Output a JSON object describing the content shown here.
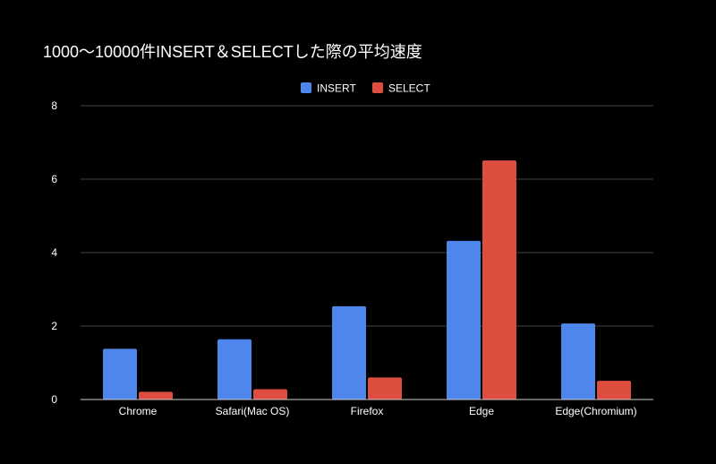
{
  "chart_data": {
    "type": "bar",
    "title": "1000〜10000件INSERT＆SELECTした際の平均速度",
    "xlabel": "",
    "ylabel": "",
    "categories": [
      "Chrome",
      "Safari(Mac OS)",
      "Firefox",
      "Edge",
      "Edge(Chromium)"
    ],
    "series": [
      {
        "name": "INSERT",
        "color": "#4f86ec",
        "values": [
          1.38,
          1.64,
          2.54,
          4.32,
          2.07
        ]
      },
      {
        "name": "SELECT",
        "color": "#dd4e40",
        "values": [
          0.21,
          0.28,
          0.6,
          6.51,
          0.51
        ]
      }
    ],
    "ylim": [
      0,
      8
    ],
    "yticks": [
      0,
      2,
      4,
      6,
      8
    ],
    "grid": true,
    "legend_position": "top-center",
    "background": "#000000",
    "text_color": "#ffffff",
    "grid_color": "#444444"
  }
}
